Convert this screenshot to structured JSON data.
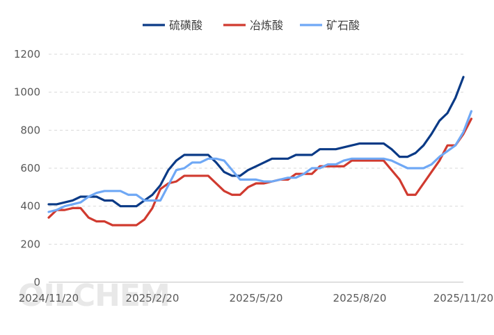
{
  "chart_data": {
    "type": "line",
    "title": "",
    "xlabel": "",
    "ylabel": "",
    "ylim": [
      0,
      1200
    ],
    "yticks": [
      0,
      200,
      400,
      600,
      800,
      1000,
      1200
    ],
    "xtick_labels": [
      "2024/11/20",
      "2025/2/20",
      "2025/5/20",
      "2025/8/20",
      "2025/11/20"
    ],
    "xtick_positions": [
      0,
      13,
      26,
      39,
      52
    ],
    "grid": true,
    "legend": "top",
    "watermark": "OILCHEM",
    "series": [
      {
        "name": "硫磺酸",
        "color": "#0a3a86",
        "values": [
          410,
          410,
          420,
          430,
          450,
          450,
          450,
          430,
          430,
          400,
          400,
          400,
          430,
          460,
          510,
          590,
          640,
          670,
          670,
          670,
          670,
          630,
          580,
          560,
          560,
          590,
          610,
          630,
          650,
          650,
          650,
          670,
          670,
          670,
          700,
          700,
          700,
          710,
          720,
          730,
          730,
          730,
          730,
          700,
          660,
          660,
          680,
          720,
          780,
          850,
          890,
          970,
          1080
        ]
      },
      {
        "name": "冶炼酸",
        "color": "#d03a2f",
        "values": [
          340,
          380,
          380,
          390,
          390,
          340,
          320,
          320,
          300,
          300,
          300,
          300,
          330,
          390,
          490,
          520,
          530,
          560,
          560,
          560,
          560,
          520,
          480,
          460,
          460,
          500,
          520,
          520,
          530,
          540,
          540,
          570,
          570,
          570,
          610,
          610,
          610,
          610,
          640,
          640,
          640,
          640,
          640,
          590,
          540,
          460,
          460,
          520,
          580,
          640,
          720,
          720,
          780,
          860
        ]
      },
      {
        "name": "矿石酸",
        "color": "#6fa8f5",
        "values": [
          370,
          380,
          400,
          410,
          420,
          450,
          470,
          480,
          480,
          480,
          460,
          460,
          430,
          430,
          430,
          510,
          590,
          600,
          630,
          630,
          650,
          650,
          640,
          590,
          540,
          540,
          540,
          530,
          530,
          540,
          550,
          550,
          570,
          600,
          600,
          620,
          620,
          640,
          650,
          650,
          650,
          650,
          650,
          640,
          620,
          600,
          600,
          600,
          620,
          660,
          690,
          720,
          790,
          900
        ]
      }
    ]
  }
}
